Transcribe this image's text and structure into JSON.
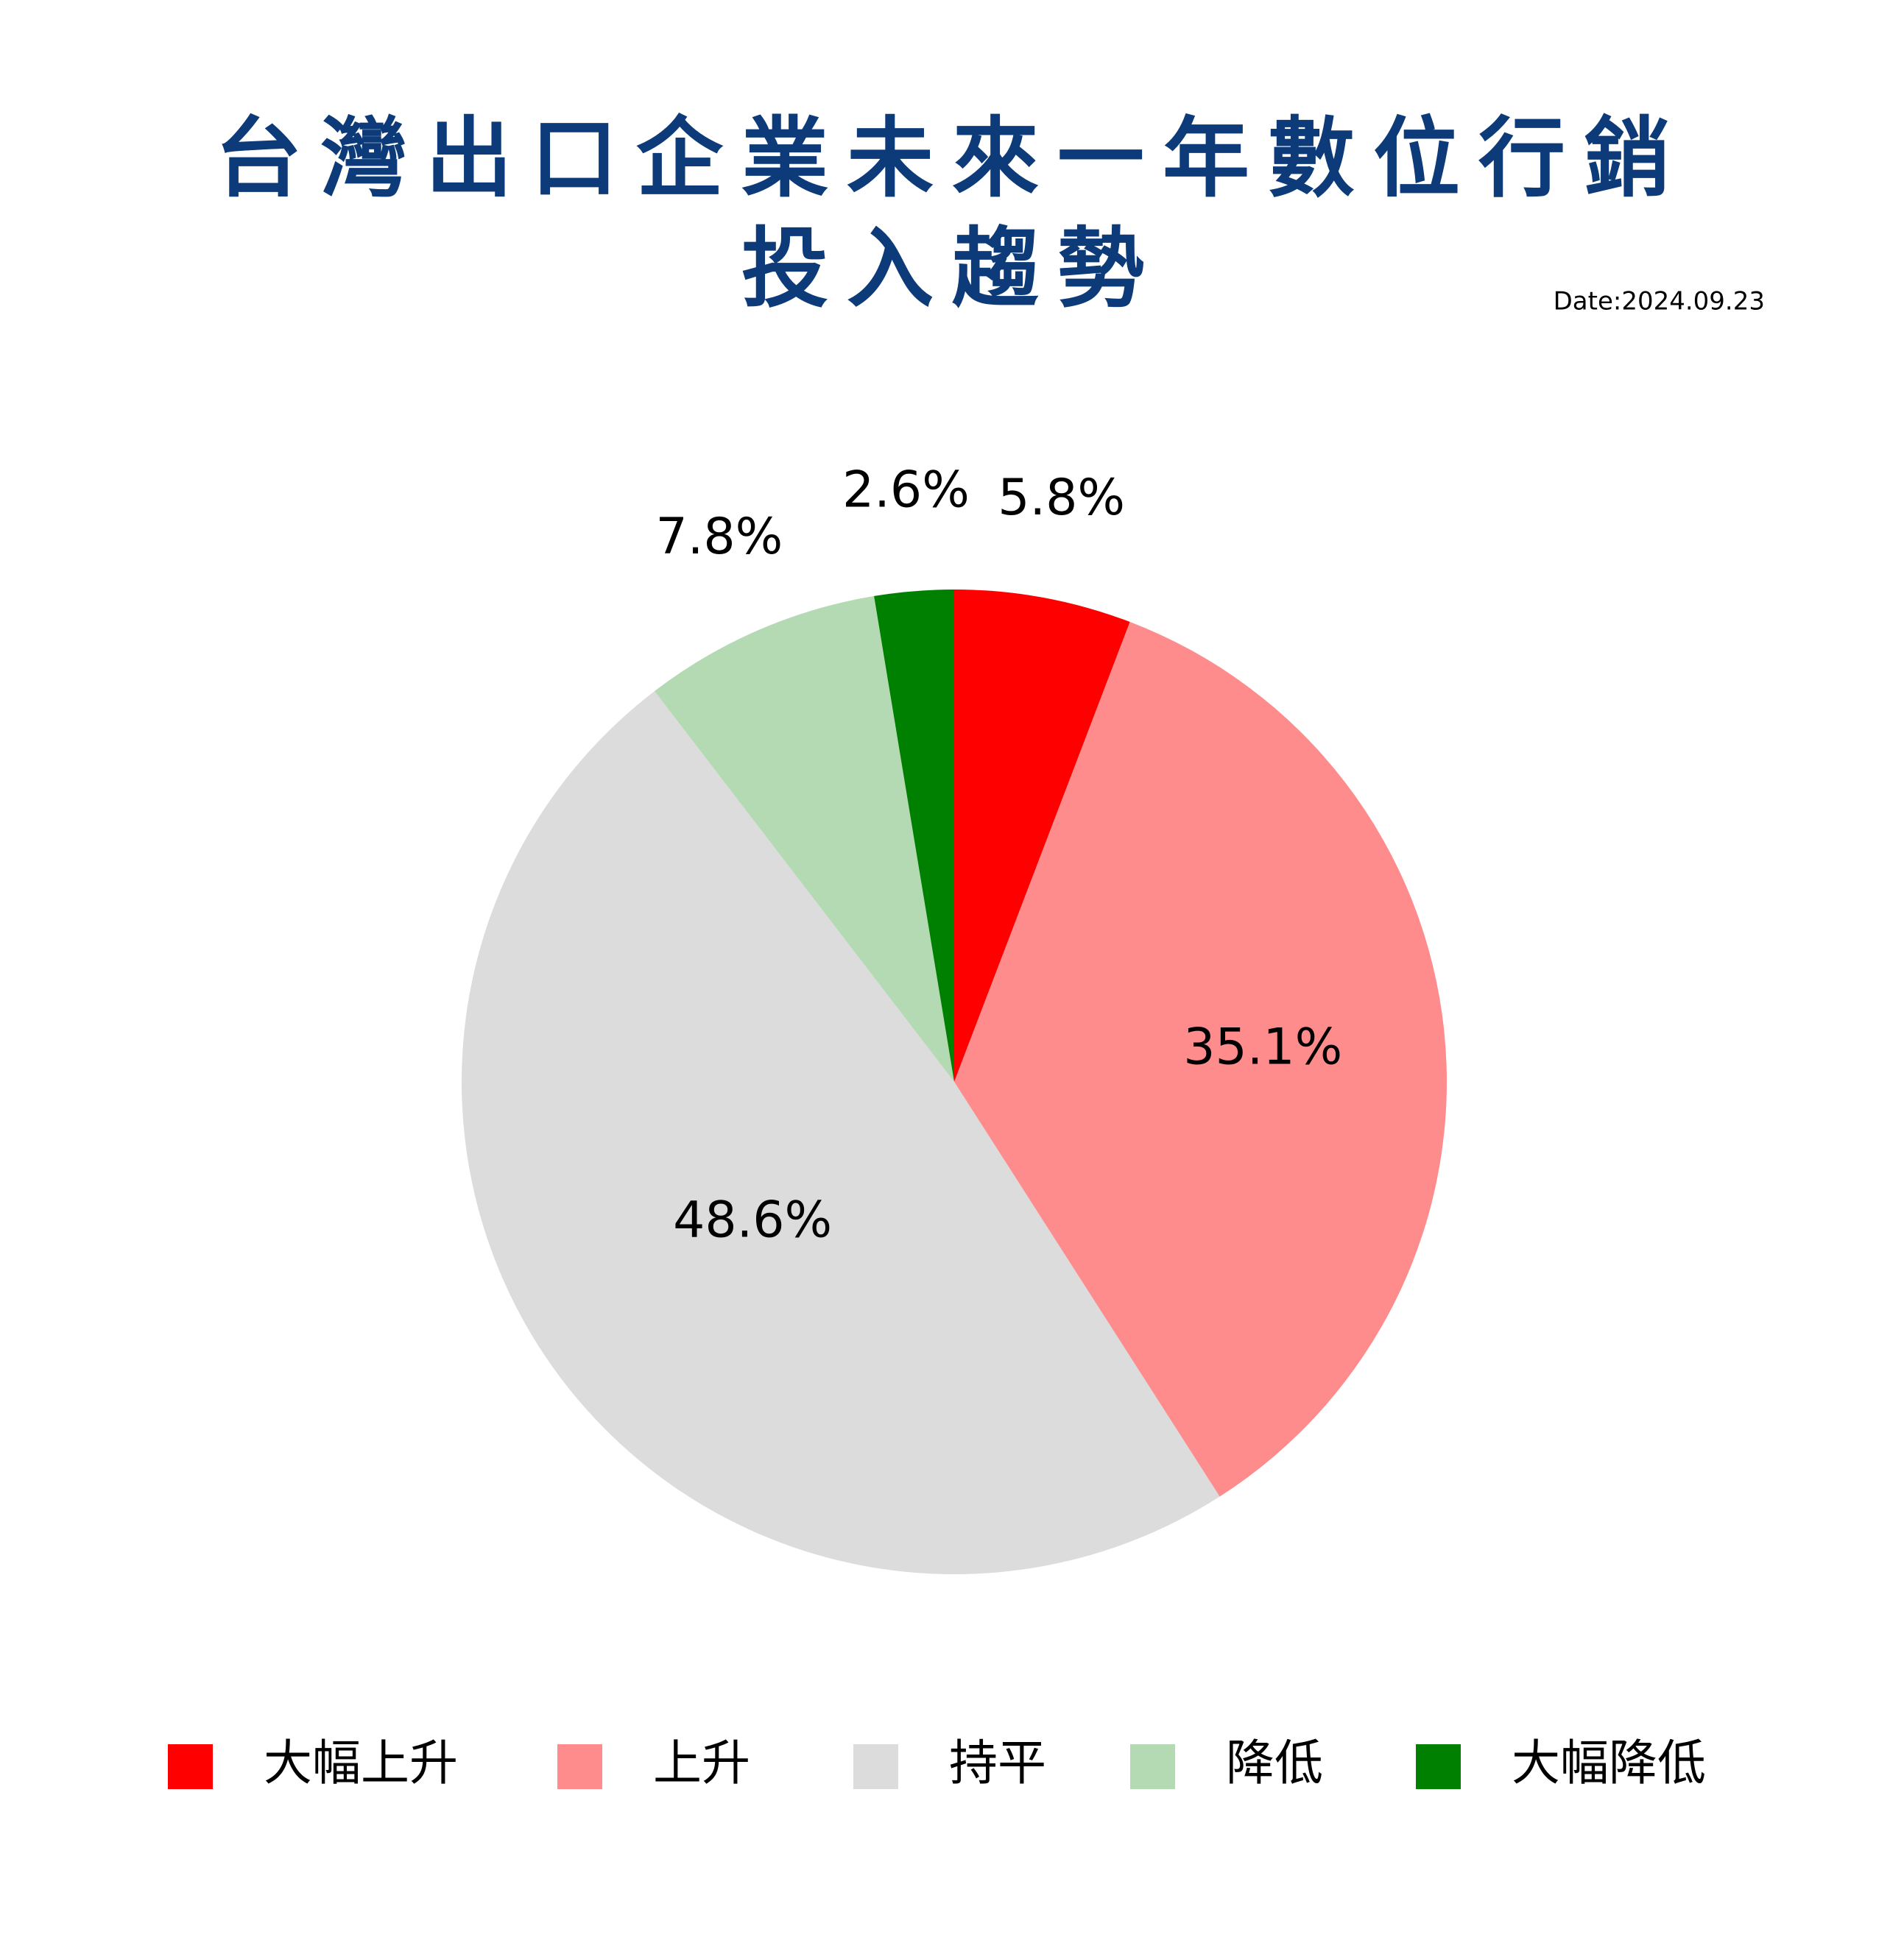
{
  "chart_data": {
    "type": "pie",
    "title": "台灣出口企業未來一年數位行銷投入趨勢",
    "subtitle": "Date:2024.09.23",
    "categories": [
      "大幅上升",
      "上升",
      "持平",
      "降低",
      "大幅降低"
    ],
    "values": [
      5.8,
      35.1,
      48.6,
      7.8,
      2.6
    ],
    "value_labels": [
      "5.8%",
      "35.1%",
      "48.6%",
      "7.8%",
      "2.6%"
    ],
    "colors": [
      "#ff0000",
      "#ff8c8c",
      "#dcdcdc",
      "#b3dab3",
      "#008000"
    ],
    "legend": "bottom"
  }
}
